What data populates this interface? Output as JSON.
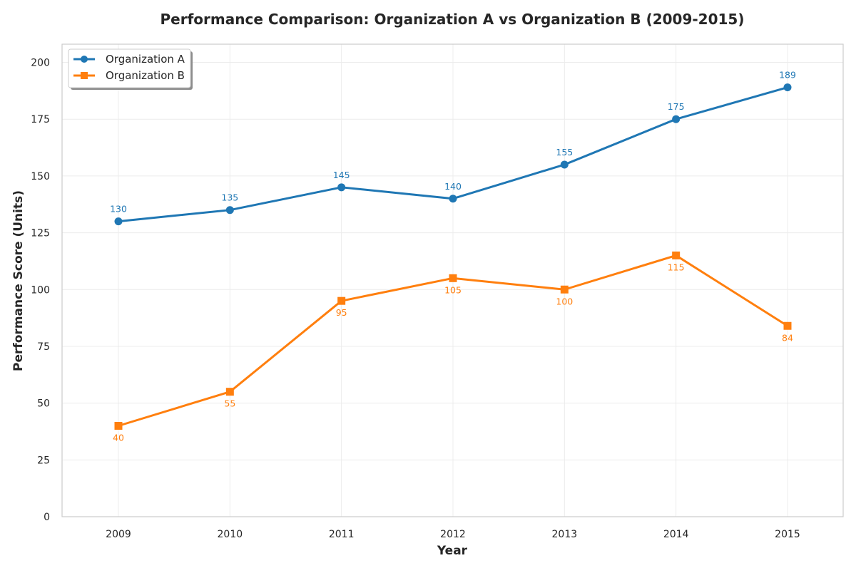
{
  "chart_data": {
    "type": "line",
    "title": "Performance Comparison: Organization A vs Organization B (2009-2015)",
    "xlabel": "Year",
    "ylabel": "Performance Score (Units)",
    "x": [
      "2009",
      "2010",
      "2011",
      "2012",
      "2013",
      "2014",
      "2015"
    ],
    "ylim": [
      0,
      208
    ],
    "yticks": [
      0,
      25,
      50,
      75,
      100,
      125,
      150,
      175,
      200
    ],
    "grid": true,
    "legend_position": "top-left",
    "series": [
      {
        "name": "Organization A",
        "color": "#1f77b4",
        "marker": "circle",
        "label_position": "above",
        "values": [
          130,
          135,
          145,
          140,
          155,
          175,
          189
        ]
      },
      {
        "name": "Organization B",
        "color": "#ff7f0e",
        "marker": "square",
        "label_position": "below",
        "values": [
          40,
          55,
          95,
          105,
          100,
          115,
          84
        ]
      }
    ]
  }
}
